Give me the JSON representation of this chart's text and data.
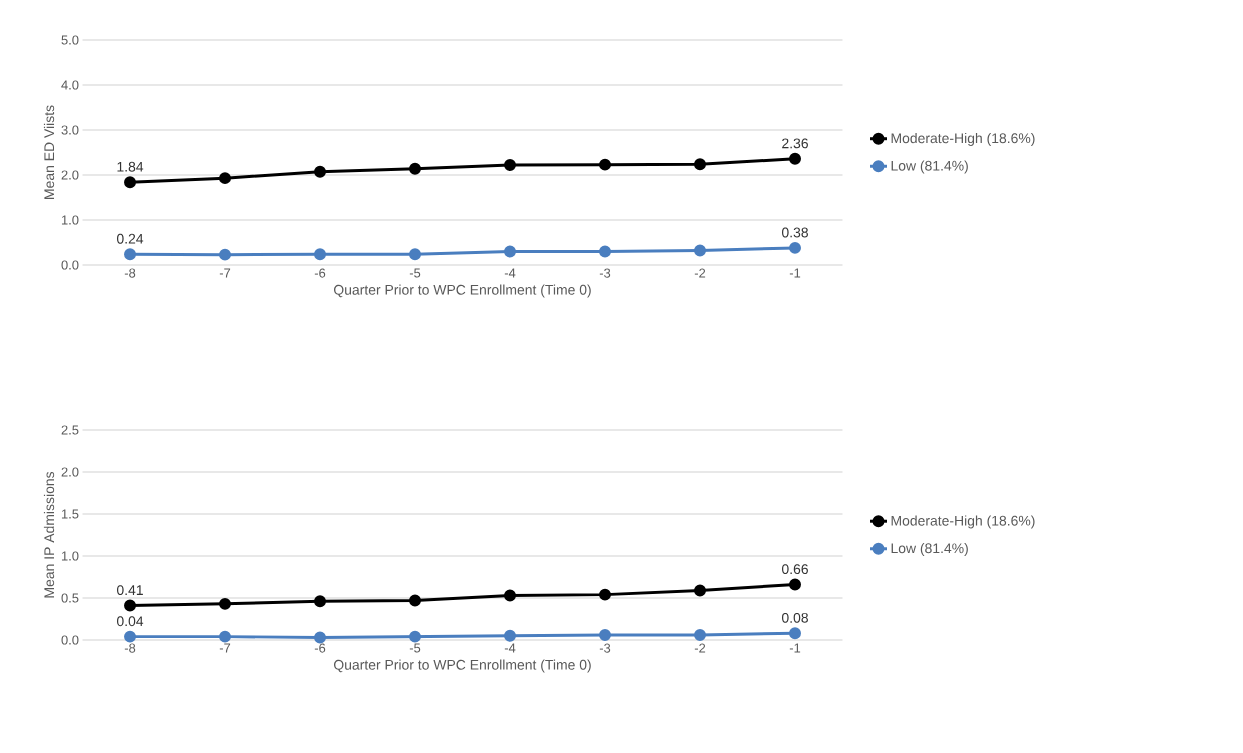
{
  "chart_data": [
    {
      "type": "line",
      "ylabel": "Mean ED Viists",
      "xlabel": "Quarter Prior to WPC Enrollment (Time 0)",
      "categories": [
        "-8",
        "-7",
        "-6",
        "-5",
        "-4",
        "-3",
        "-2",
        "-1"
      ],
      "ylim": [
        0,
        5
      ],
      "yticks": [
        {
          "value": 0,
          "label": "0.0"
        },
        {
          "value": 1,
          "label": "1.0"
        },
        {
          "value": 2,
          "label": "2.0"
        },
        {
          "value": 3,
          "label": "3.0"
        },
        {
          "value": 4,
          "label": "4.0"
        },
        {
          "value": 5,
          "label": "5.0"
        }
      ],
      "grid": "y",
      "legend": "right",
      "marker": "circle",
      "line_style": "solid",
      "series": [
        {
          "name": "Moderate-High (18.6%)",
          "color": "#000000",
          "values": [
            1.84,
            1.93,
            2.07,
            2.14,
            2.22,
            2.23,
            2.24,
            2.36
          ],
          "value_labels": [
            "1.84",
            null,
            null,
            null,
            null,
            null,
            null,
            "2.36"
          ]
        },
        {
          "name": "Low (81.4%)",
          "color": "#4a7ebf",
          "values": [
            0.24,
            0.23,
            0.24,
            0.24,
            0.3,
            0.3,
            0.32,
            0.38
          ],
          "value_labels": [
            "0.24",
            null,
            null,
            null,
            null,
            null,
            null,
            "0.38"
          ]
        }
      ]
    },
    {
      "type": "line",
      "ylabel": "Mean IP Admissions",
      "xlabel": "Quarter Prior to WPC Enrollment (Time 0)",
      "categories": [
        "-8",
        "-7",
        "-6",
        "-5",
        "-4",
        "-3",
        "-2",
        "-1"
      ],
      "ylim": [
        0,
        2.5
      ],
      "yticks": [
        {
          "value": 0,
          "label": "0.0"
        },
        {
          "value": 0.5,
          "label": "0.5"
        },
        {
          "value": 1,
          "label": "1.0"
        },
        {
          "value": 1.5,
          "label": "1.5"
        },
        {
          "value": 2,
          "label": "2.0"
        },
        {
          "value": 2.5,
          "label": "2.5"
        }
      ],
      "grid": "y",
      "legend": "right",
      "marker": "circle",
      "line_style": "solid",
      "series": [
        {
          "name": "Moderate-High (18.6%)",
          "color": "#000000",
          "values": [
            0.41,
            0.43,
            0.46,
            0.47,
            0.53,
            0.54,
            0.59,
            0.66
          ],
          "value_labels": [
            "0.41",
            null,
            null,
            null,
            null,
            null,
            null,
            "0.66"
          ]
        },
        {
          "name": "Low (81.4%)",
          "color": "#4a7ebf",
          "values": [
            0.04,
            0.04,
            0.03,
            0.04,
            0.05,
            0.06,
            0.06,
            0.08
          ],
          "value_labels": [
            "0.04",
            null,
            null,
            null,
            null,
            null,
            null,
            "0.08"
          ]
        }
      ]
    }
  ]
}
